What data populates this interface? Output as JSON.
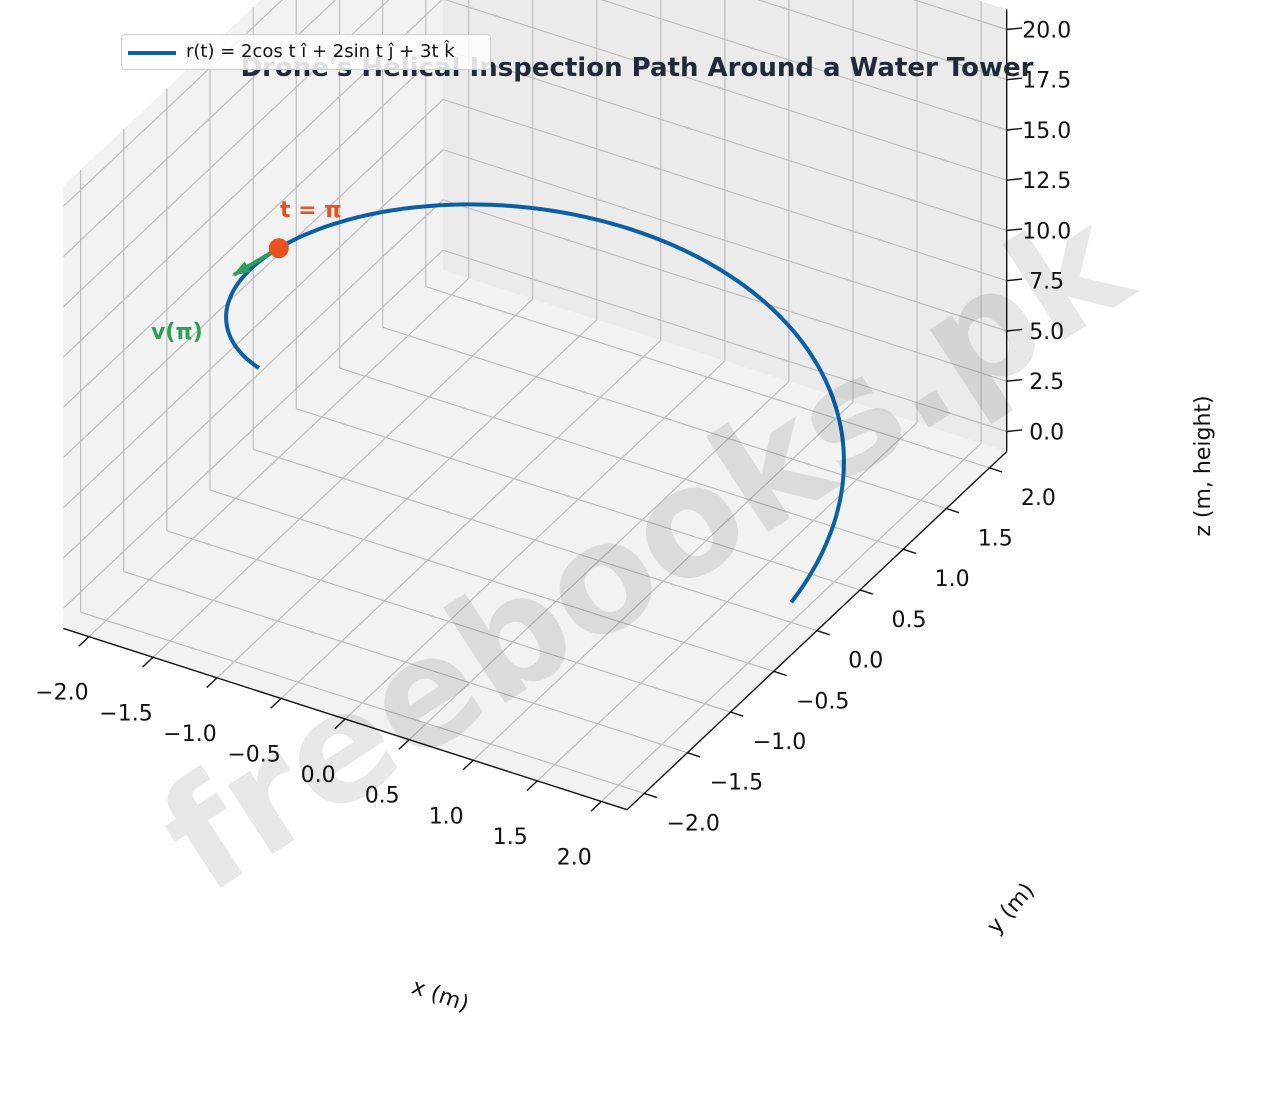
{
  "colors": {
    "helix": "#0b5fa5",
    "point": "#e8521e",
    "velocity": "#2e9e5b",
    "pane": "#f2f2f2",
    "grid": "#bdbdbd"
  },
  "chart_data": {
    "type": "line",
    "title": "Drone's Helical Inspection Path Around a Water Tower",
    "xlabel": "x (m)",
    "ylabel": "y (m)",
    "zlabel": "z (m, height)",
    "xlim": [
      -2.2,
      2.2
    ],
    "ylim": [
      -2.2,
      2.2
    ],
    "zlim": [
      -1,
      21
    ],
    "x_ticks": [
      "−2.0",
      "−1.5",
      "−1.0",
      "−0.5",
      "0.0",
      "0.5",
      "1.0",
      "1.5",
      "2.0"
    ],
    "y_ticks": [
      "−2.0",
      "−1.5",
      "−1.0",
      "−0.5",
      "0.0",
      "0.5",
      "1.0",
      "1.5",
      "2.0"
    ],
    "z_ticks": [
      "0.0",
      "2.5",
      "5.0",
      "7.5",
      "10.0",
      "12.5",
      "15.0",
      "17.5",
      "20.0"
    ],
    "series": [
      {
        "name": "r(t) = 2cos t î + 2sin t ĵ + 3t k̂",
        "function": "helix",
        "radius": 2,
        "pitch_per_radian": 3,
        "t_range": [
          0,
          4.2
        ]
      }
    ],
    "annotations": [
      {
        "label": "t = π",
        "t": 3.1416,
        "point": [
          -2,
          0,
          9.42
        ]
      },
      {
        "label": "v(π)",
        "vector": [
          0,
          -2,
          3
        ]
      }
    ],
    "legend_position": "top-left",
    "watermark": "freebooks.pk"
  }
}
